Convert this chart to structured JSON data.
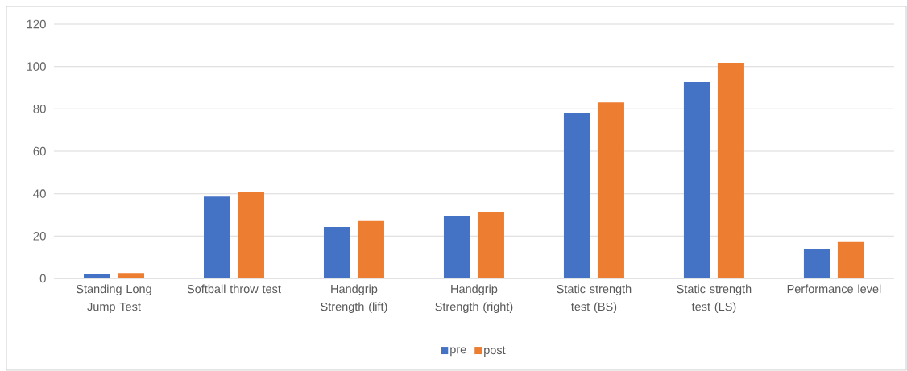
{
  "chart_data": {
    "type": "bar",
    "categories": [
      "Standing Long Jump Test",
      "Softball throw test",
      "Handgrip Strength (lift)",
      "Handgrip Strength (right)",
      "Static strength test (BS)",
      "Static strength test (LS)",
      "Performance level"
    ],
    "series": [
      {
        "name": "pre",
        "color": "#4472c4",
        "values": [
          2.0,
          38.6,
          24.3,
          29.6,
          78.2,
          92.7,
          14.0
        ]
      },
      {
        "name": "post",
        "color": "#ed7d31",
        "values": [
          2.6,
          41.0,
          27.4,
          31.5,
          83.1,
          101.8,
          17.2
        ]
      }
    ],
    "ylim": [
      0,
      120
    ],
    "yticks": [
      0,
      20,
      40,
      60,
      80,
      100,
      120
    ],
    "grid": "y",
    "legend": "bottom"
  }
}
